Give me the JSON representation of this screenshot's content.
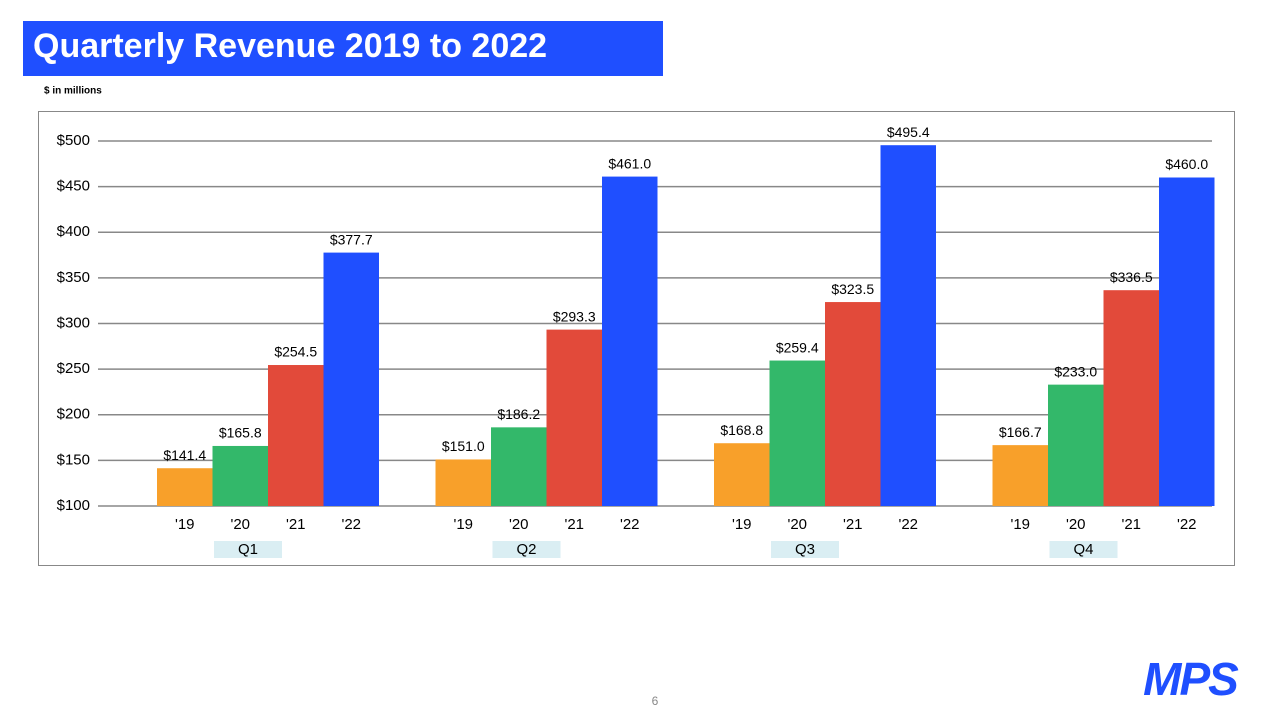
{
  "title": "Quarterly Revenue 2019 to 2022",
  "subtitle": "$ in millions",
  "page_number": "6",
  "logo": "MPS",
  "chart_data": {
    "type": "bar",
    "categories": [
      "Q1",
      "Q2",
      "Q3",
      "Q4"
    ],
    "series": [
      {
        "name": "'19",
        "color": "#f8a02a",
        "values": [
          141.4,
          151.0,
          168.8,
          166.7
        ],
        "value_labels": [
          "$141.4",
          "$151.0",
          "$168.8",
          "$166.7"
        ]
      },
      {
        "name": "'20",
        "color": "#33b86a",
        "values": [
          165.8,
          186.2,
          259.4,
          233.0
        ],
        "value_labels": [
          "$165.8",
          "$186.2",
          "$259.4",
          "$233.0"
        ]
      },
      {
        "name": "'21",
        "color": "#e24a3a",
        "values": [
          254.5,
          293.3,
          323.5,
          336.5
        ],
        "value_labels": [
          "$254.5",
          "$293.3",
          "$323.5",
          "$336.5"
        ]
      },
      {
        "name": "'22",
        "color": "#1f4fff",
        "values": [
          377.7,
          461.0,
          495.4,
          460.0
        ],
        "value_labels": [
          "$377.7",
          "$461.0",
          "$495.4",
          "$460.0"
        ]
      }
    ],
    "ylim": [
      100,
      500
    ],
    "yticks": [
      {
        "value": 100,
        "label": "$100"
      },
      {
        "value": 150,
        "label": "$150"
      },
      {
        "value": 200,
        "label": "$200"
      },
      {
        "value": 250,
        "label": "$250"
      },
      {
        "value": 300,
        "label": "$300"
      },
      {
        "value": 350,
        "label": "$350"
      },
      {
        "value": 400,
        "label": "$400"
      },
      {
        "value": 450,
        "label": "$450"
      },
      {
        "value": 500,
        "label": "$500"
      }
    ],
    "grid": true
  }
}
